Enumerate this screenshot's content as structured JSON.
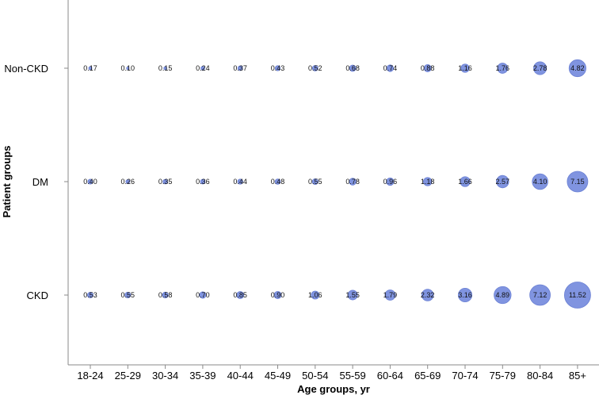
{
  "chart_data": {
    "type": "scatter",
    "subtype": "bubble",
    "xlabel": "Age groups, yr",
    "ylabel": "Patient groups",
    "categories": [
      "18-24",
      "25-29",
      "30-34",
      "35-39",
      "40-44",
      "45-49",
      "50-54",
      "55-59",
      "60-64",
      "65-69",
      "70-74",
      "75-79",
      "80-84",
      "85+"
    ],
    "y_categories": [
      "Non-CKD",
      "DM",
      "CKD"
    ],
    "bubble_color": "#8094e0",
    "bubble_stroke": "#6a80d4",
    "series": [
      {
        "name": "Non-CKD",
        "values": [
          0.17,
          0.1,
          0.15,
          0.24,
          0.37,
          0.43,
          0.52,
          0.68,
          0.74,
          0.88,
          1.16,
          1.76,
          2.78,
          4.82
        ],
        "labels": [
          "0.17",
          "0.10",
          "0.15",
          "0.24",
          "0.37",
          "0.43",
          "0.52",
          "0.68",
          "0.74",
          "0.88",
          "1.16",
          "1.76",
          "2.78",
          "4.82"
        ]
      },
      {
        "name": "DM",
        "values": [
          0.4,
          0.26,
          0.35,
          0.36,
          0.44,
          0.48,
          0.55,
          0.78,
          0.96,
          1.18,
          1.66,
          2.57,
          4.1,
          7.15
        ],
        "labels": [
          "0.40",
          "0.26",
          "0.35",
          "0.36",
          "0.44",
          "0.48",
          "0.55",
          "0.78",
          "0.96",
          "1.18",
          "1.66",
          "2.57",
          "4.10",
          "7.15"
        ]
      },
      {
        "name": "CKD",
        "values": [
          0.53,
          0.55,
          0.58,
          0.7,
          0.85,
          0.9,
          1.06,
          1.55,
          1.79,
          2.32,
          3.16,
          4.89,
          7.12,
          11.52
        ],
        "labels": [
          "0.53",
          "0.55",
          "0.58",
          "0.70",
          "0.85",
          "0.90",
          "1.06",
          "1.55",
          "1.79",
          "2.32",
          "3.16",
          "4.89",
          "7.12",
          "11.52"
        ]
      }
    ]
  }
}
